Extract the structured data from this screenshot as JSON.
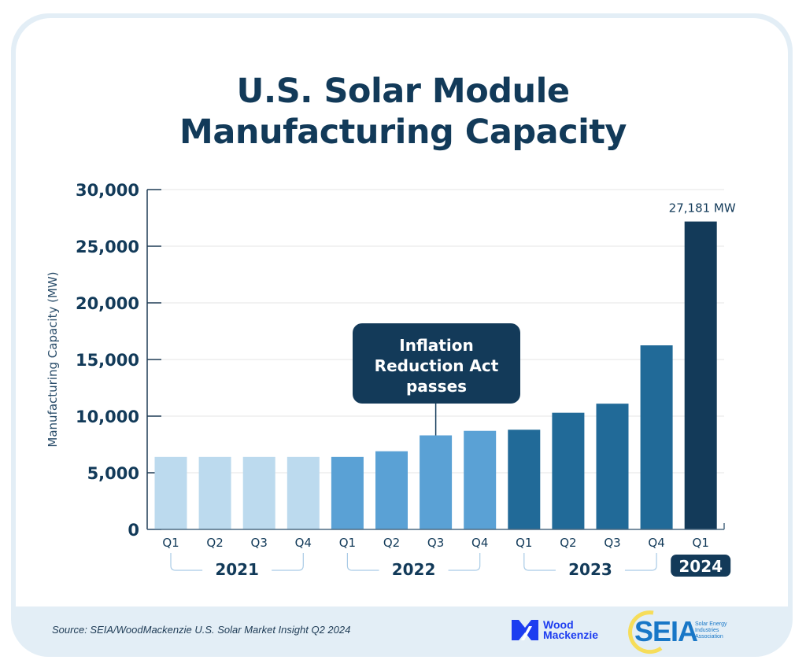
{
  "chart_data": {
    "type": "bar",
    "title": "U.S. Solar Module Manufacturing Capacity",
    "title_lines": [
      "U.S. Solar Module",
      "Manufacturing Capacity"
    ],
    "xlabel": "",
    "ylabel": "Manufacturing Capacity (MW)",
    "ylim": [
      0,
      30000
    ],
    "yticks": [
      0,
      5000,
      10000,
      15000,
      20000,
      25000,
      30000
    ],
    "ytick_labels": [
      "0",
      "5,000",
      "10,000",
      "15,000",
      "20,000",
      "25,000",
      "30,000"
    ],
    "grid": true,
    "categories": [
      "Q1",
      "Q2",
      "Q3",
      "Q4",
      "Q1",
      "Q2",
      "Q3",
      "Q4",
      "Q1",
      "Q2",
      "Q3",
      "Q4",
      "Q1"
    ],
    "years": [
      {
        "label": "2021",
        "start": 0,
        "end": 3,
        "highlight": false
      },
      {
        "label": "2022",
        "start": 4,
        "end": 7,
        "highlight": false
      },
      {
        "label": "2023",
        "start": 8,
        "end": 11,
        "highlight": false
      },
      {
        "label": "2024",
        "start": 12,
        "end": 12,
        "highlight": true
      }
    ],
    "values": [
      6400,
      6400,
      6400,
      6400,
      6400,
      6900,
      8300,
      8700,
      8800,
      10300,
      11100,
      16250,
      27181
    ],
    "bar_colors": [
      "#bcdaee",
      "#bcdaee",
      "#bcdaee",
      "#bcdaee",
      "#5aa1d5",
      "#5aa1d5",
      "#5aa1d5",
      "#5aa1d5",
      "#216a98",
      "#216a98",
      "#216a98",
      "#216a98",
      "#133a59"
    ],
    "data_labels": [
      {
        "index": 12,
        "text": "27,181 MW"
      }
    ],
    "annotations": [
      {
        "index": 6,
        "lines": [
          "Inflation",
          "Reduction Act",
          "passes"
        ]
      }
    ]
  },
  "colors": {
    "title": "#123a59",
    "axis": "#1e3b55",
    "grid": "#e6e6e6",
    "bracket": "#a9cbe6",
    "annotation_bg": "#133a59",
    "footer_bg": "#e3eef6"
  },
  "footer": {
    "source": "Source: SEIA/WoodMackenzie U.S. Solar Market Insight Q2 2024",
    "wood_mackenzie_line1": "Wood",
    "wood_mackenzie_line2": "Mackenzie",
    "seia_acronym": "SEIA",
    "seia_line1": "Solar Energy",
    "seia_line2": "Industries",
    "seia_line3": "Association"
  }
}
